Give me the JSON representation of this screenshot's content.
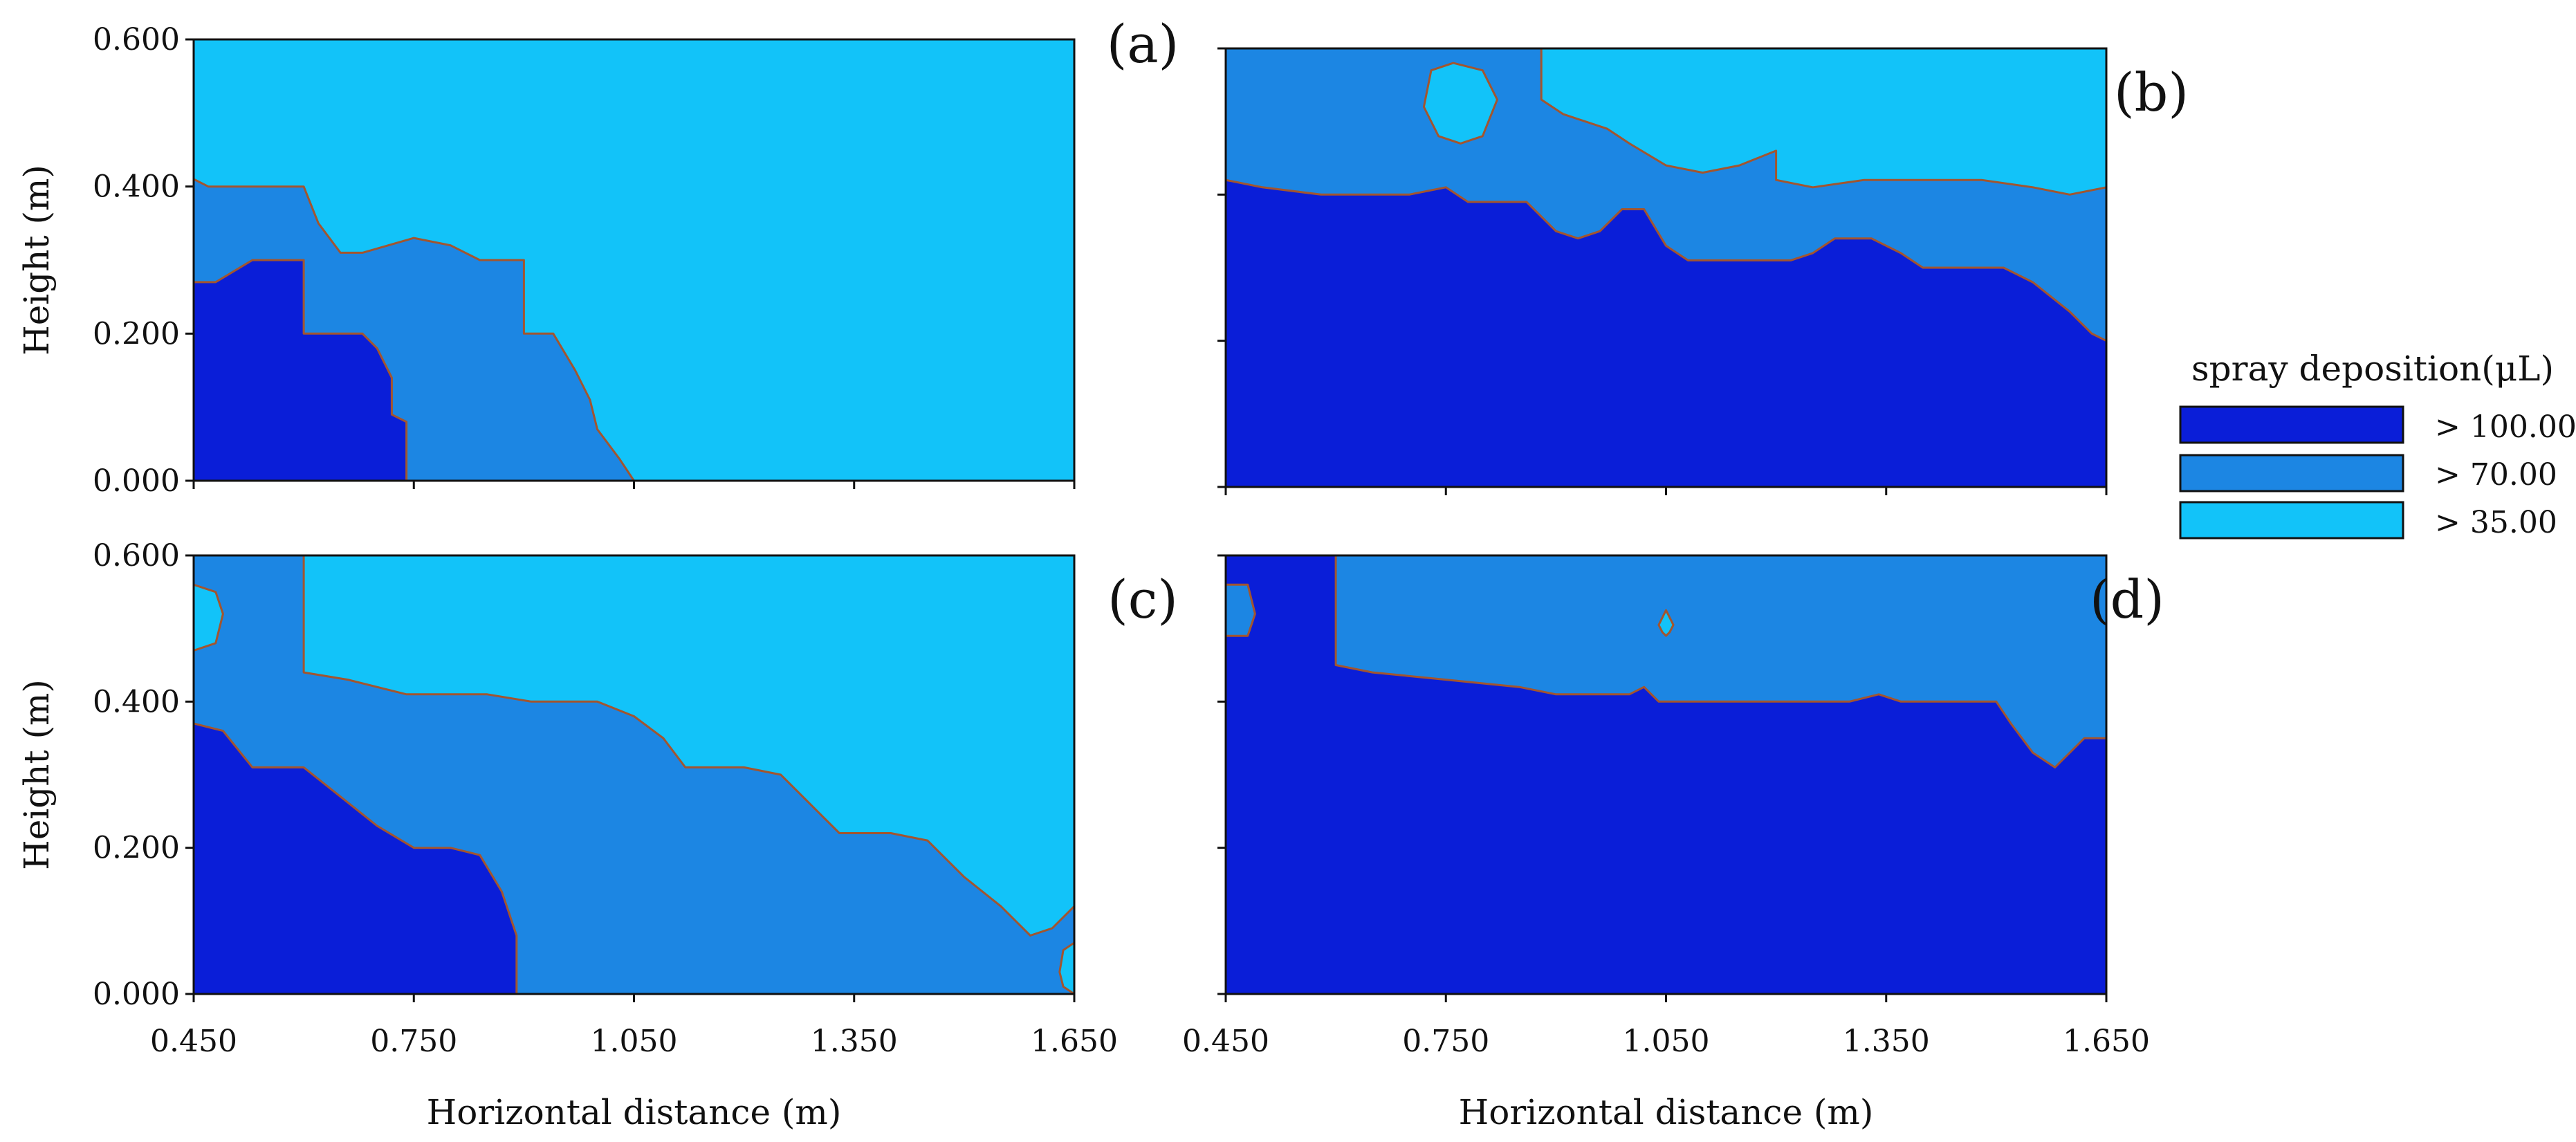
{
  "colors": {
    "high": "#0a1ed8",
    "mid": "#1c86e3",
    "low": "#12c3f9",
    "contour_line": "#a2552f",
    "frame": "#111111"
  },
  "legend": {
    "title": "spray deposition(μL)",
    "items": [
      {
        "label": "> 100.00",
        "color": "#0a1ed8"
      },
      {
        "label": "> 70.00",
        "color": "#1c86e3"
      },
      {
        "label": "> 35.00",
        "color": "#12c3f9"
      }
    ]
  },
  "x_axis_title": "Horizontal distance (m)",
  "y_axis_title": "Height (m)",
  "chart_data": [
    {
      "type": "heatmap",
      "panel": "(a)",
      "xlim": [
        0.45,
        1.65
      ],
      "ylim": [
        0.0,
        0.6
      ],
      "xticks": [
        "0.450",
        "0.750",
        "1.050",
        "1.350",
        "1.650"
      ],
      "yticks": [
        "0.000",
        "0.200",
        "0.400",
        "0.600"
      ],
      "xlabel": "",
      "ylabel": "Height (m)",
      "background_level": "> 35.00",
      "regions": [
        {
          "level": "> 70.00",
          "boundary": [
            [
              0.45,
              0.0
            ],
            [
              0.45,
              0.41
            ],
            [
              0.47,
              0.4
            ],
            [
              0.6,
              0.4
            ],
            [
              0.62,
              0.35
            ],
            [
              0.65,
              0.31
            ],
            [
              0.68,
              0.31
            ],
            [
              0.75,
              0.33
            ],
            [
              0.8,
              0.32
            ],
            [
              0.84,
              0.3
            ],
            [
              0.9,
              0.3
            ],
            [
              0.9,
              0.2
            ],
            [
              0.94,
              0.2
            ],
            [
              0.97,
              0.15
            ],
            [
              0.99,
              0.11
            ],
            [
              1.0,
              0.07
            ],
            [
              1.03,
              0.03
            ],
            [
              1.05,
              0.0
            ]
          ]
        },
        {
          "level": "> 100.00",
          "boundary": [
            [
              0.45,
              0.0
            ],
            [
              0.45,
              0.27
            ],
            [
              0.48,
              0.27
            ],
            [
              0.53,
              0.3
            ],
            [
              0.6,
              0.3
            ],
            [
              0.6,
              0.2
            ],
            [
              0.62,
              0.2
            ],
            [
              0.68,
              0.2
            ],
            [
              0.7,
              0.18
            ],
            [
              0.72,
              0.14
            ],
            [
              0.72,
              0.09
            ],
            [
              0.74,
              0.08
            ],
            [
              0.74,
              0.0
            ]
          ]
        }
      ]
    },
    {
      "type": "heatmap",
      "panel": "(b)",
      "xlim": [
        0.45,
        1.65
      ],
      "ylim": [
        0.0,
        0.6
      ],
      "xticks": [
        "0.450",
        "0.750",
        "1.050",
        "1.350",
        "1.650"
      ],
      "yticks": [],
      "background_level": "> 35.00",
      "regions": [
        {
          "level": "> 70.00",
          "boundary": [
            [
              0.45,
              0.0
            ],
            [
              0.45,
              0.6
            ],
            [
              0.88,
              0.6
            ],
            [
              0.88,
              0.53
            ],
            [
              0.91,
              0.51
            ],
            [
              0.97,
              0.49
            ],
            [
              1.0,
              0.47
            ],
            [
              1.05,
              0.44
            ],
            [
              1.1,
              0.43
            ],
            [
              1.15,
              0.44
            ],
            [
              1.2,
              0.46
            ],
            [
              1.2,
              0.42
            ],
            [
              1.25,
              0.41
            ],
            [
              1.32,
              0.42
            ],
            [
              1.4,
              0.42
            ],
            [
              1.48,
              0.42
            ],
            [
              1.55,
              0.41
            ],
            [
              1.6,
              0.4
            ],
            [
              1.65,
              0.41
            ],
            [
              1.65,
              0.0
            ]
          ]
        },
        {
          "level": "> 35.00",
          "boundary": [
            [
              0.72,
              0.52
            ],
            [
              0.74,
              0.48
            ],
            [
              0.77,
              0.47
            ],
            [
              0.8,
              0.48
            ],
            [
              0.82,
              0.53
            ],
            [
              0.8,
              0.57
            ],
            [
              0.76,
              0.58
            ],
            [
              0.73,
              0.57
            ]
          ]
        },
        {
          "level": "> 100.00",
          "boundary": [
            [
              0.45,
              0.0
            ],
            [
              0.45,
              0.42
            ],
            [
              0.5,
              0.41
            ],
            [
              0.58,
              0.4
            ],
            [
              0.7,
              0.4
            ],
            [
              0.75,
              0.41
            ],
            [
              0.78,
              0.39
            ],
            [
              0.86,
              0.39
            ],
            [
              0.9,
              0.35
            ],
            [
              0.93,
              0.34
            ],
            [
              0.96,
              0.35
            ],
            [
              0.99,
              0.38
            ],
            [
              1.02,
              0.38
            ],
            [
              1.05,
              0.33
            ],
            [
              1.08,
              0.31
            ],
            [
              1.12,
              0.31
            ],
            [
              1.22,
              0.31
            ],
            [
              1.25,
              0.32
            ],
            [
              1.28,
              0.34
            ],
            [
              1.33,
              0.34
            ],
            [
              1.37,
              0.32
            ],
            [
              1.4,
              0.3
            ],
            [
              1.47,
              0.3
            ],
            [
              1.51,
              0.3
            ],
            [
              1.55,
              0.28
            ],
            [
              1.6,
              0.24
            ],
            [
              1.63,
              0.21
            ],
            [
              1.65,
              0.2
            ],
            [
              1.65,
              0.0
            ]
          ]
        }
      ]
    },
    {
      "type": "heatmap",
      "panel": "(c)",
      "xlim": [
        0.45,
        1.65
      ],
      "ylim": [
        0.0,
        0.6
      ],
      "xticks": [
        "0.450",
        "0.750",
        "1.050",
        "1.350",
        "1.650"
      ],
      "yticks": [
        "0.000",
        "0.200",
        "0.400",
        "0.600"
      ],
      "xlabel": "Horizontal distance (m)",
      "ylabel": "Height (m)",
      "background_level": "> 35.00",
      "regions": [
        {
          "level": "> 70.00",
          "boundary": [
            [
              0.45,
              0.0
            ],
            [
              0.45,
              0.6
            ],
            [
              0.6,
              0.6
            ],
            [
              0.6,
              0.44
            ],
            [
              0.66,
              0.43
            ],
            [
              0.74,
              0.41
            ],
            [
              0.85,
              0.41
            ],
            [
              0.91,
              0.4
            ],
            [
              1.0,
              0.4
            ],
            [
              1.05,
              0.38
            ],
            [
              1.09,
              0.35
            ],
            [
              1.12,
              0.31
            ],
            [
              1.2,
              0.31
            ],
            [
              1.25,
              0.3
            ],
            [
              1.28,
              0.27
            ],
            [
              1.31,
              0.24
            ],
            [
              1.33,
              0.22
            ],
            [
              1.4,
              0.22
            ],
            [
              1.45,
              0.21
            ],
            [
              1.5,
              0.16
            ],
            [
              1.55,
              0.12
            ],
            [
              1.59,
              0.08
            ],
            [
              1.62,
              0.09
            ],
            [
              1.65,
              0.12
            ],
            [
              1.65,
              0.0
            ]
          ]
        },
        {
          "level": "> 35.00",
          "boundary": [
            [
              0.45,
              0.47
            ],
            [
              0.48,
              0.48
            ],
            [
              0.49,
              0.52
            ],
            [
              0.48,
              0.55
            ],
            [
              0.45,
              0.56
            ]
          ]
        },
        {
          "level": "> 35.00",
          "boundary": [
            [
              1.65,
              0.07
            ],
            [
              1.635,
              0.06
            ],
            [
              1.63,
              0.03
            ],
            [
              1.635,
              0.01
            ],
            [
              1.65,
              0.0
            ]
          ]
        },
        {
          "level": "> 100.00",
          "boundary": [
            [
              0.45,
              0.0
            ],
            [
              0.45,
              0.37
            ],
            [
              0.49,
              0.36
            ],
            [
              0.53,
              0.31
            ],
            [
              0.6,
              0.31
            ],
            [
              0.65,
              0.27
            ],
            [
              0.7,
              0.23
            ],
            [
              0.75,
              0.2
            ],
            [
              0.8,
              0.2
            ],
            [
              0.84,
              0.19
            ],
            [
              0.87,
              0.14
            ],
            [
              0.89,
              0.08
            ],
            [
              0.89,
              0.0
            ]
          ]
        }
      ]
    },
    {
      "type": "heatmap",
      "panel": "(d)",
      "xlim": [
        0.45,
        1.65
      ],
      "ylim": [
        0.0,
        0.6
      ],
      "xticks": [
        "0.450",
        "0.750",
        "1.050",
        "1.350",
        "1.650"
      ],
      "yticks": [],
      "xlabel": "Horizontal distance (m)",
      "background_level": "> 70.00",
      "regions": [
        {
          "level": "> 100.00",
          "boundary": [
            [
              0.45,
              0.0
            ],
            [
              0.45,
              0.6
            ],
            [
              0.6,
              0.6
            ],
            [
              0.6,
              0.45
            ],
            [
              0.65,
              0.44
            ],
            [
              0.75,
              0.43
            ],
            [
              0.85,
              0.42
            ],
            [
              0.9,
              0.41
            ],
            [
              1.0,
              0.41
            ],
            [
              1.02,
              0.42
            ],
            [
              1.04,
              0.4
            ],
            [
              1.1,
              0.4
            ],
            [
              1.2,
              0.4
            ],
            [
              1.3,
              0.4
            ],
            [
              1.34,
              0.41
            ],
            [
              1.37,
              0.4
            ],
            [
              1.45,
              0.4
            ],
            [
              1.5,
              0.4
            ],
            [
              1.52,
              0.37
            ],
            [
              1.55,
              0.33
            ],
            [
              1.58,
              0.31
            ],
            [
              1.6,
              0.33
            ],
            [
              1.62,
              0.35
            ],
            [
              1.65,
              0.35
            ],
            [
              1.65,
              0.0
            ]
          ]
        },
        {
          "level": "> 70.00",
          "boundary": [
            [
              0.45,
              0.49
            ],
            [
              0.48,
              0.49
            ],
            [
              0.49,
              0.52
            ],
            [
              0.48,
              0.56
            ],
            [
              0.45,
              0.56
            ]
          ]
        },
        {
          "level": "> 35.00",
          "boundary": [
            [
              1.04,
              0.505
            ],
            [
              1.045,
              0.515
            ],
            [
              1.05,
              0.525
            ],
            [
              1.055,
              0.515
            ],
            [
              1.06,
              0.505
            ],
            [
              1.055,
              0.495
            ],
            [
              1.05,
              0.49
            ],
            [
              1.045,
              0.495
            ]
          ]
        }
      ]
    }
  ]
}
